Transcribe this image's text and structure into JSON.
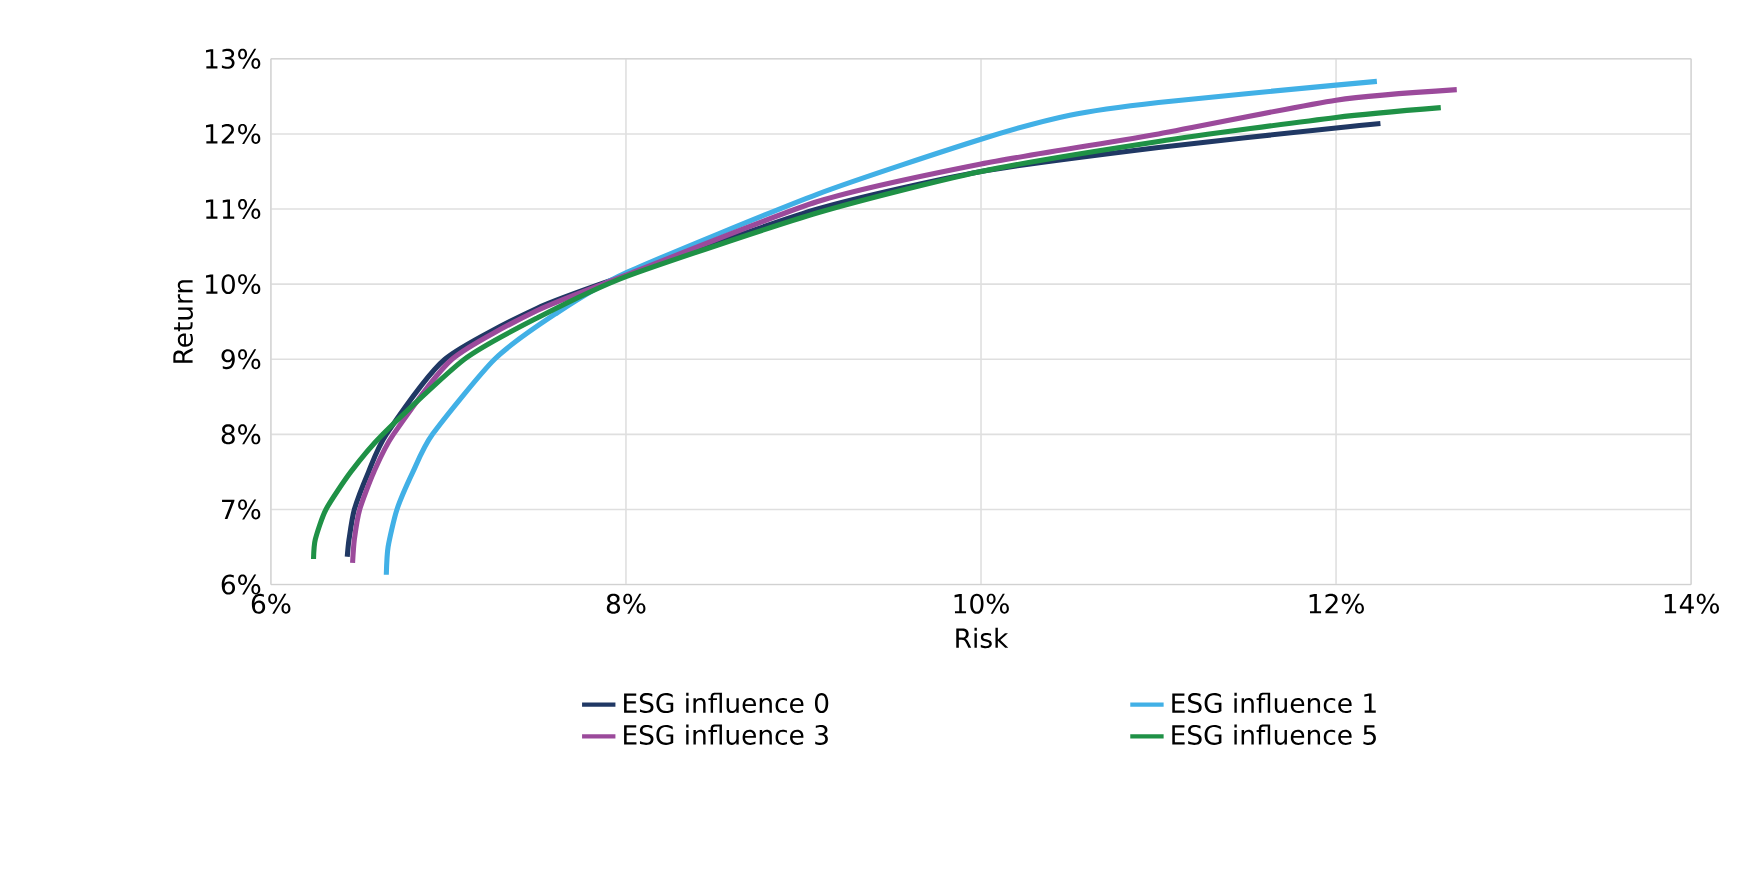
{
  "chart_data": {
    "type": "line",
    "xlabel": "Risk",
    "ylabel": "Return",
    "xlim": [
      6,
      14
    ],
    "ylim": [
      6,
      13
    ],
    "xticks": [
      {
        "value": 6,
        "label": "6%"
      },
      {
        "value": 8,
        "label": "8%"
      },
      {
        "value": 10,
        "label": "10%"
      },
      {
        "value": 12,
        "label": "12%"
      },
      {
        "value": 14,
        "label": "14%"
      }
    ],
    "yticks": [
      {
        "value": 6,
        "label": "6%"
      },
      {
        "value": 7,
        "label": "7%"
      },
      {
        "value": 8,
        "label": "8%"
      },
      {
        "value": 9,
        "label": "9%"
      },
      {
        "value": 10,
        "label": "10%"
      },
      {
        "value": 11,
        "label": "11%"
      },
      {
        "value": 12,
        "label": "12%"
      },
      {
        "value": 13,
        "label": "13%"
      }
    ],
    "grid": true,
    "legend": "bottom",
    "marker": "none",
    "line_style": "solid",
    "series": [
      {
        "name": "ESG influence 0",
        "color": "#203864",
        "x": [
          6.43,
          6.44,
          6.47,
          6.55,
          6.65,
          6.98,
          7.5,
          8.0,
          9.08,
          10.0,
          11.0,
          12.0,
          12.25
        ],
        "values": [
          6.37,
          6.6,
          7.0,
          7.5,
          8.0,
          9.0,
          9.68,
          10.12,
          11.0,
          11.5,
          11.82,
          12.08,
          12.14
        ]
      },
      {
        "name": "ESG influence 1",
        "color": "#41b0e6",
        "x": [
          6.65,
          6.66,
          6.71,
          6.8,
          6.91,
          7.26,
          7.6,
          8.0,
          9.08,
          10.0,
          10.5,
          11.0,
          12.0,
          12.23
        ],
        "values": [
          6.13,
          6.5,
          7.0,
          7.5,
          8.0,
          9.0,
          9.6,
          10.15,
          11.2,
          11.93,
          12.25,
          12.42,
          12.65,
          12.7
        ]
      },
      {
        "name": "ESG influence 3",
        "color": "#9b4a9b",
        "x": [
          6.46,
          6.47,
          6.5,
          6.58,
          6.69,
          7.02,
          7.5,
          8.0,
          9.08,
          10.0,
          11.0,
          12.0,
          12.68
        ],
        "values": [
          6.29,
          6.6,
          7.0,
          7.5,
          8.0,
          9.0,
          9.65,
          10.12,
          11.1,
          11.6,
          12.0,
          12.45,
          12.59
        ]
      },
      {
        "name": "ESG influence 5",
        "color": "#1f9146",
        "x": [
          6.24,
          6.25,
          6.31,
          6.45,
          6.63,
          7.09,
          7.5,
          8.0,
          9.08,
          10.0,
          11.0,
          12.0,
          12.59
        ],
        "values": [
          6.34,
          6.6,
          7.0,
          7.5,
          8.0,
          9.0,
          9.55,
          10.1,
          10.95,
          11.5,
          11.9,
          12.22,
          12.35
        ]
      }
    ]
  }
}
